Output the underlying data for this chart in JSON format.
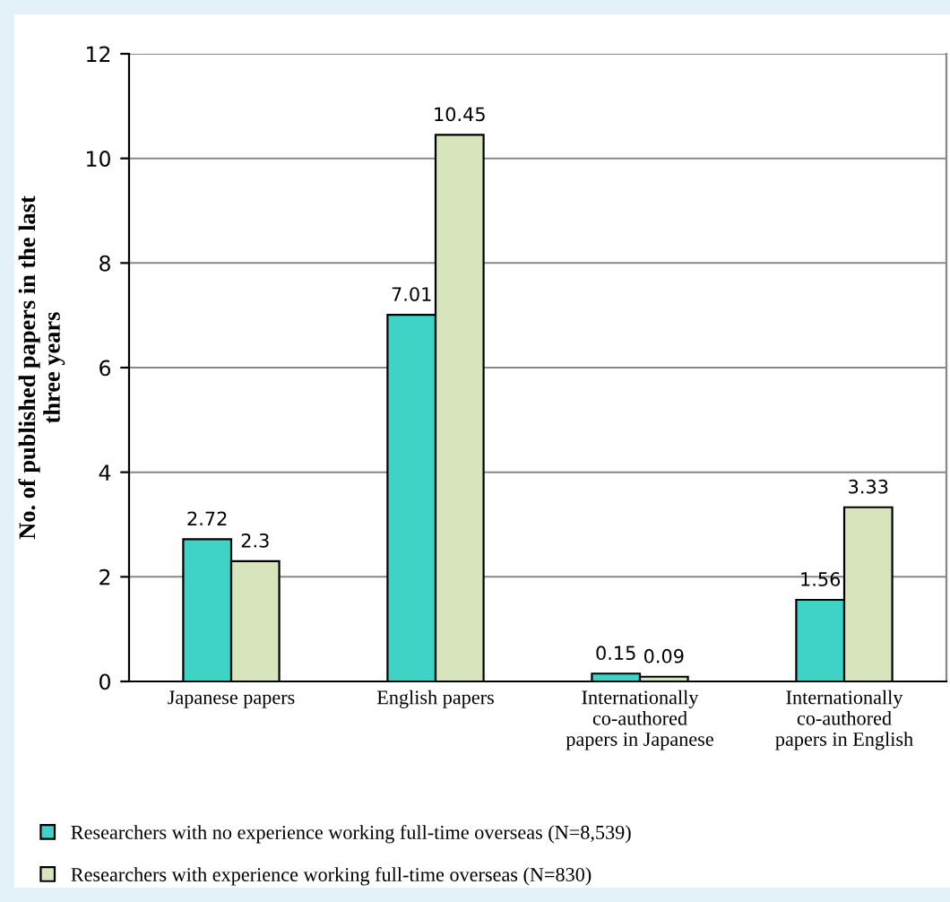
{
  "chart_data": {
    "type": "bar",
    "ylabel": "No. of published papers in the last\nthree years",
    "categories": [
      "Japanese papers",
      "English papers",
      "Internationally\nco-authored\npapers in Japanese",
      "Internationally\nco-authored\npapers in English"
    ],
    "series": [
      {
        "name": "Researchers with no experience working full-time overseas (N=8,539)",
        "color": "#3fd3c8",
        "values": [
          2.72,
          7.01,
          0.15,
          1.56
        ]
      },
      {
        "name": "Researchers with experience working full-time overseas (N=830)",
        "color": "#d7e4bc",
        "values": [
          2.3,
          10.45,
          0.09,
          3.33
        ]
      }
    ],
    "ylim": [
      0,
      12
    ],
    "yticks": [
      0,
      2,
      4,
      6,
      8,
      10,
      12
    ],
    "grid": "y",
    "legend": "bottom",
    "data_labels": true
  }
}
